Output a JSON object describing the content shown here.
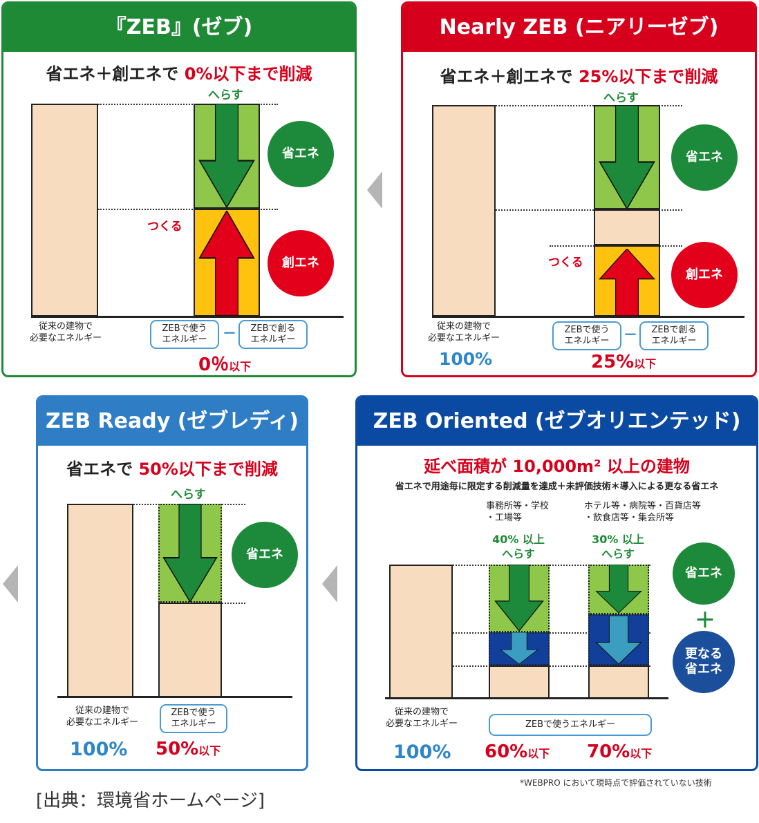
{
  "panels": {
    "zeb": {
      "title": "『ZEB』(ゼブ)",
      "subtitle_prefix": "省エネ＋創エネで",
      "subtitle_highlight": "0%以下まで削減",
      "reduce": "へらす",
      "make": "つくる",
      "circle_save": "省エネ",
      "circle_create": "創エネ",
      "base_label": "従来の建物で\n必要なエネルギー",
      "use_pill": "ZEBで使う\nエネルギー",
      "minus": "－",
      "create_pill": "ZEBで創る\nエネルギー",
      "result_value": "0％",
      "result_suffix": "以下",
      "color": "#1f8a36"
    },
    "nearly": {
      "title": "Nearly ZEB (ニアリーゼブ)",
      "subtitle_prefix": "省エネ＋創エネで",
      "subtitle_highlight": "25%以下まで削減",
      "reduce": "へらす",
      "make": "つくる",
      "circle_save": "省エネ",
      "circle_create": "創エネ",
      "base_label": "従来の建物で\n必要なエネルギー",
      "base_value": "100%",
      "use_pill": "ZEBで使う\nエネルギー",
      "minus": "－",
      "create_pill": "ZEBで創る\nエネルギー",
      "result_value": "25%",
      "result_suffix": "以下",
      "color": "#d6001c"
    },
    "ready": {
      "title": "ZEB Ready (ゼブレディ)",
      "subtitle_prefix": "省エネで",
      "subtitle_highlight": "50%以下まで削減",
      "reduce": "へらす",
      "circle_save": "省エネ",
      "base_label": "従来の建物で\n必要なエネルギー",
      "base_value": "100%",
      "use_pill": "ZEBで使う\nエネルギー",
      "result_value": "50%",
      "result_suffix": "以下",
      "color": "#2e7dc5"
    },
    "oriented": {
      "title": "ZEB Oriented (ゼブオリエンテッド)",
      "subtitle_main": "延べ面積が 10,000m² 以上の建物",
      "subtitle_note": "省エネで用途毎に限定する削減量を達成＋未評価技術＊導入による更なる省エネ",
      "group1": "事務所等・学校\n・工場等",
      "group2": "ホテル等・病院等・百貨店等\n・飲食店等・集会所等",
      "reduce1": "40% 以上\nへらす",
      "reduce2": "30% 以上\nへらす",
      "circle_save": "省エネ",
      "plus": "＋",
      "circle_more": "更なる\n省エネ",
      "base_label": "従来の建物で\n必要なエネルギー",
      "base_value": "100%",
      "use_pill": "ZEBで使うエネルギー",
      "result1_value": "60%",
      "result1_suffix": "以下",
      "result2_value": "70%",
      "result2_suffix": "以下",
      "color": "#0b4aa2"
    }
  },
  "footnote": "*WEBPRO において現時点で評価されていない技術",
  "source": "[出典：環境省ホームページ]",
  "colors": {
    "green_head": "#1f8a36",
    "red_head": "#d6001c",
    "blue_head": "#2e7dc5",
    "navy_head": "#0b4aa2",
    "save_fill": "#8fc74a",
    "create_fill": "#ffc20e",
    "extra_fill": "#123f9a",
    "base_fill": "#f8dcc0"
  }
}
